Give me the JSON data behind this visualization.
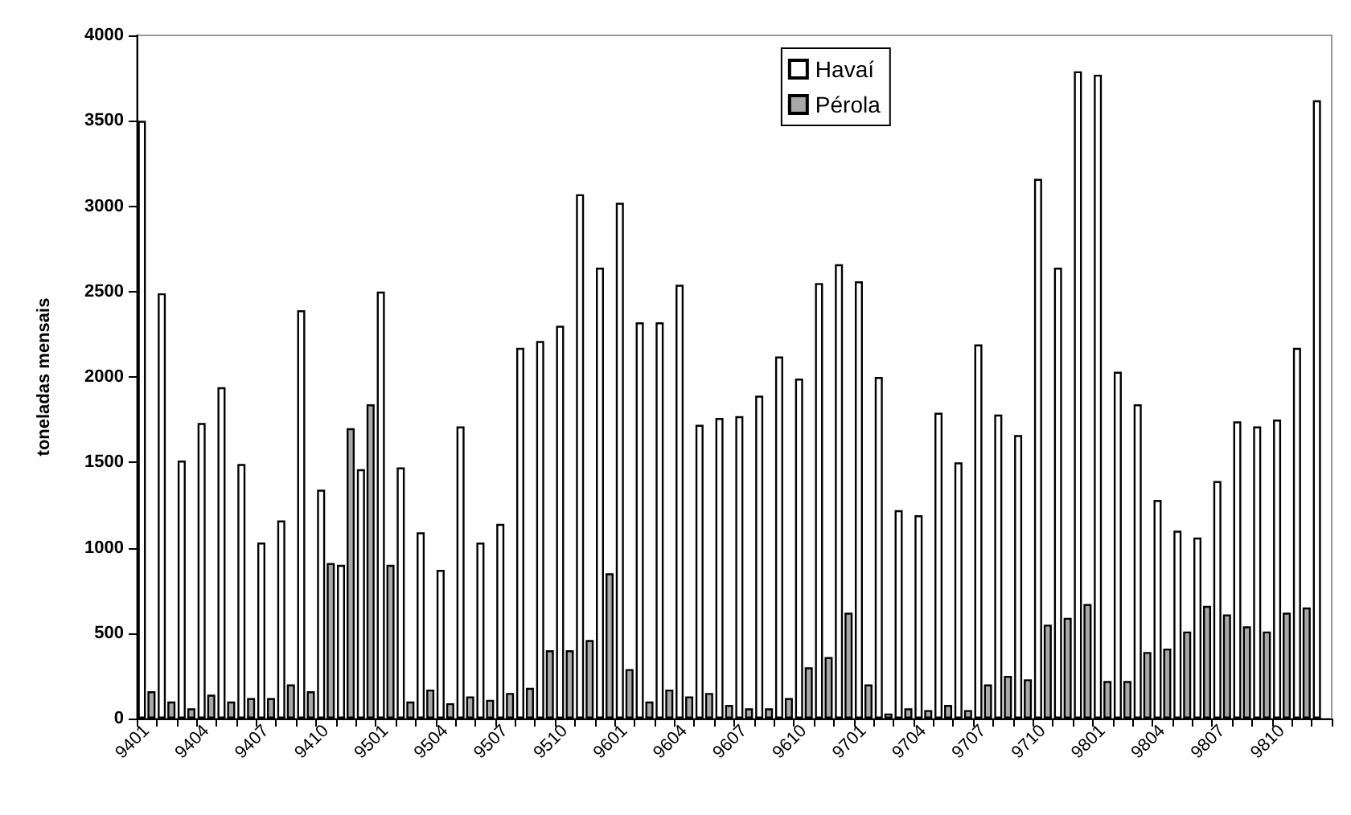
{
  "chart_data": {
    "type": "bar",
    "ylabel": "toneladas mensais",
    "categories": [
      "9401",
      null,
      null,
      "9404",
      null,
      null,
      "9407",
      null,
      null,
      "9410",
      null,
      null,
      "9501",
      null,
      null,
      "9504",
      null,
      null,
      "9507",
      null,
      null,
      "9510",
      null,
      null,
      "9601",
      null,
      null,
      "9604",
      null,
      null,
      "9607",
      null,
      null,
      "9610",
      null,
      null,
      "9701",
      null,
      null,
      "9704",
      null,
      null,
      "9707",
      null,
      null,
      "9710",
      null,
      null,
      "9801",
      null,
      null,
      "9804",
      null,
      null,
      "9807",
      null,
      null,
      "9810",
      null,
      null
    ],
    "series": [
      {
        "name": "Havaí",
        "color": "#ffffff",
        "values": [
          3500,
          2490,
          1510,
          1730,
          1940,
          1490,
          1030,
          1160,
          2390,
          1340,
          900,
          1460,
          2500,
          1470,
          1090,
          870,
          1710,
          1030,
          1140,
          2170,
          2210,
          2300,
          3070,
          2640,
          3020,
          2320,
          2320,
          2540,
          1720,
          1760,
          1770,
          1890,
          2120,
          1990,
          2550,
          2660,
          2560,
          2000,
          1220,
          1190,
          1790,
          1500,
          2190,
          1780,
          1660,
          3160,
          2640,
          3790,
          3770,
          2030,
          1840,
          1280,
          1100,
          1060,
          1390,
          1740,
          1710,
          1750,
          2170,
          3620
        ]
      },
      {
        "name": "Pérola",
        "color": "#a8a8a8",
        "values": [
          160,
          100,
          60,
          140,
          100,
          120,
          120,
          200,
          160,
          910,
          1700,
          1840,
          900,
          100,
          170,
          90,
          130,
          110,
          150,
          180,
          400,
          400,
          460,
          850,
          290,
          100,
          170,
          130,
          150,
          80,
          60,
          60,
          120,
          300,
          360,
          620,
          200,
          30,
          60,
          50,
          80,
          50,
          200,
          250,
          230,
          550,
          590,
          670,
          220,
          220,
          390,
          410,
          510,
          660,
          610,
          540,
          510,
          620,
          650,
          null
        ]
      }
    ],
    "ylim": [
      0,
      4000
    ],
    "yticks": [
      0,
      500,
      1000,
      1500,
      2000,
      2500,
      3000,
      3500,
      4000
    ],
    "grid": false,
    "legend": "top"
  }
}
